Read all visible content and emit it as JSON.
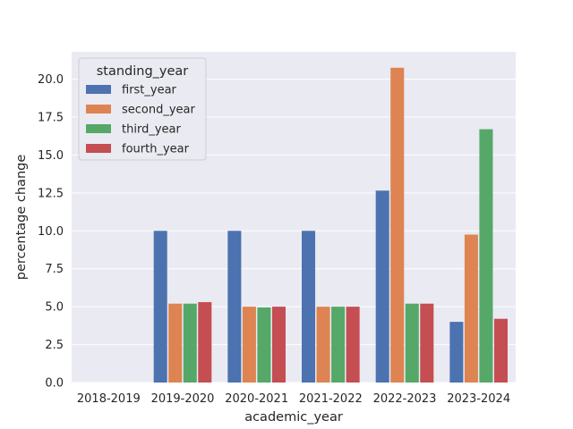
{
  "chart_data": {
    "type": "bar",
    "title": "",
    "xlabel": "academic_year",
    "ylabel": "percentage change",
    "categories": [
      "2018-2019",
      "2019-2020",
      "2020-2021",
      "2021-2022",
      "2022-2023",
      "2023-2024"
    ],
    "ylim": [
      0,
      21.8
    ],
    "yticks": [
      "0.0",
      "2.5",
      "5.0",
      "7.5",
      "10.0",
      "12.5",
      "15.0",
      "17.5",
      "20.0"
    ],
    "grid": true,
    "legend": {
      "title": "standing_year",
      "placement": "top-left"
    },
    "series": [
      {
        "name": "first_year",
        "color": "#4c72b0",
        "values": [
          0,
          10.0,
          10.0,
          10.0,
          12.65,
          4.0
        ]
      },
      {
        "name": "second_year",
        "color": "#dd8452",
        "values": [
          0,
          5.2,
          5.0,
          5.0,
          20.75,
          9.75
        ]
      },
      {
        "name": "third_year",
        "color": "#55a868",
        "values": [
          0,
          5.2,
          4.95,
          5.0,
          5.2,
          16.7
        ]
      },
      {
        "name": "fourth_year",
        "color": "#c44e52",
        "values": [
          0,
          5.3,
          5.0,
          5.0,
          5.2,
          4.2
        ]
      }
    ],
    "plot_background": "#eaeaf2",
    "grid_color": "#ffffff"
  }
}
